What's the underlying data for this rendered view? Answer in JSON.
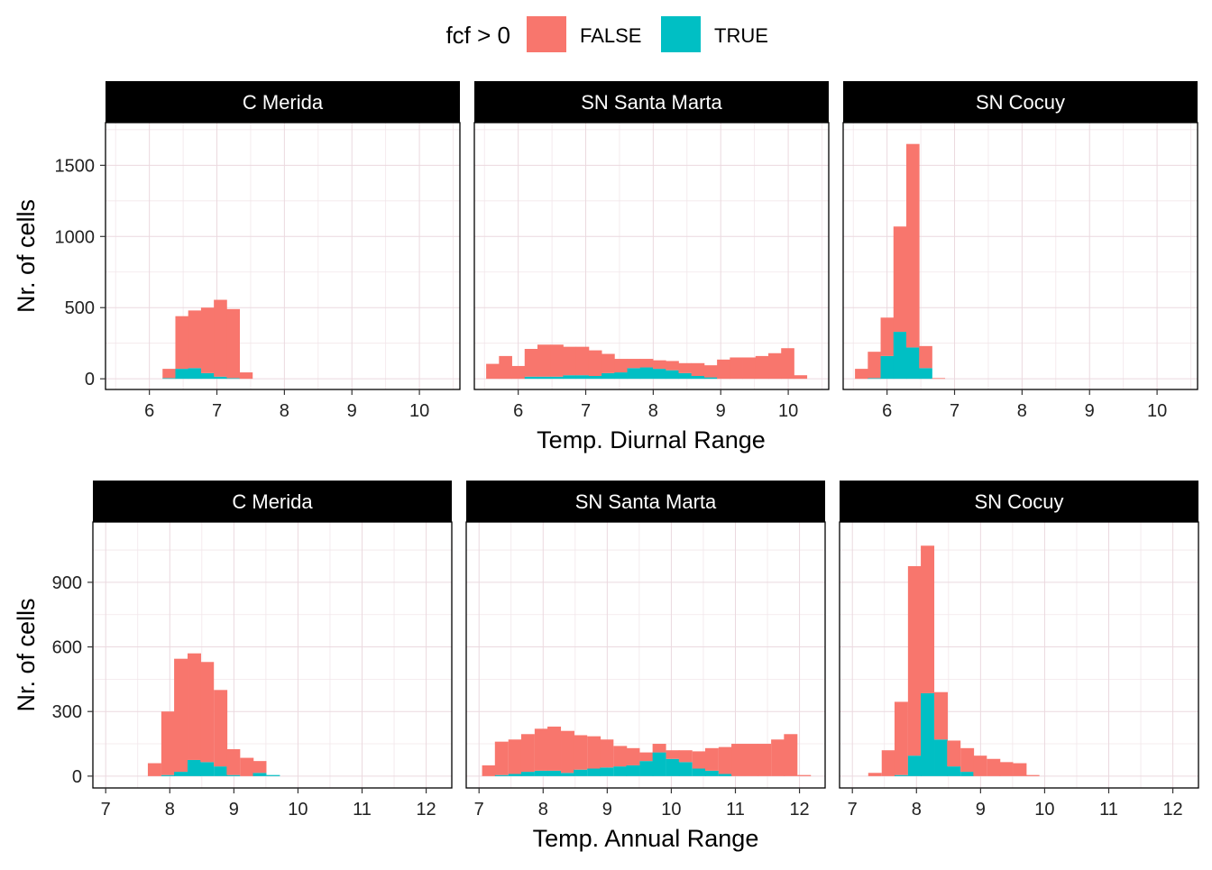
{
  "legend": {
    "title": "fcf > 0",
    "entries": [
      {
        "label": "FALSE",
        "color": "#F8766D"
      },
      {
        "label": "TRUE",
        "color": "#00BFC4"
      }
    ],
    "placement": "top-center"
  },
  "chart_data": [
    {
      "type": "bar",
      "stacked": true,
      "xlabel": "Temp. Diurnal Range",
      "ylabel": "Nr. of cells",
      "xlim": [
        5.35,
        10.6
      ],
      "ylim": [
        -75,
        1800
      ],
      "xticks": [
        6,
        7,
        8,
        9,
        10
      ],
      "yticks": [
        0,
        500,
        1000,
        1500
      ],
      "binwidth": 0.19,
      "facets": [
        {
          "title": "C Merida",
          "bins": [
            {
              "x": 6.29,
              "false": 65,
              "true": 5
            },
            {
              "x": 6.48,
              "false": 370,
              "true": 70
            },
            {
              "x": 6.67,
              "false": 405,
              "true": 75
            },
            {
              "x": 6.86,
              "false": 460,
              "true": 40
            },
            {
              "x": 7.05,
              "false": 540,
              "true": 15
            },
            {
              "x": 7.24,
              "false": 485,
              "true": 5
            },
            {
              "x": 7.43,
              "false": 45,
              "true": 0
            }
          ]
        },
        {
          "title": "SN Santa Marta",
          "bins": [
            {
              "x": 5.62,
              "false": 105,
              "true": 0
            },
            {
              "x": 5.81,
              "false": 160,
              "true": 0
            },
            {
              "x": 6.0,
              "false": 90,
              "true": 0
            },
            {
              "x": 6.19,
              "false": 195,
              "true": 15
            },
            {
              "x": 6.38,
              "false": 225,
              "true": 15
            },
            {
              "x": 6.57,
              "false": 225,
              "true": 15
            },
            {
              "x": 6.76,
              "false": 200,
              "true": 25
            },
            {
              "x": 6.95,
              "false": 200,
              "true": 25
            },
            {
              "x": 7.14,
              "false": 180,
              "true": 20
            },
            {
              "x": 7.33,
              "false": 135,
              "true": 40
            },
            {
              "x": 7.52,
              "false": 95,
              "true": 45
            },
            {
              "x": 7.71,
              "false": 65,
              "true": 75
            },
            {
              "x": 7.9,
              "false": 60,
              "true": 80
            },
            {
              "x": 8.09,
              "false": 60,
              "true": 70
            },
            {
              "x": 8.28,
              "false": 65,
              "true": 60
            },
            {
              "x": 8.47,
              "false": 70,
              "true": 40
            },
            {
              "x": 8.66,
              "false": 90,
              "true": 20
            },
            {
              "x": 8.85,
              "false": 85,
              "true": 10
            },
            {
              "x": 9.04,
              "false": 135,
              "true": 0
            },
            {
              "x": 9.23,
              "false": 150,
              "true": 0
            },
            {
              "x": 9.42,
              "false": 150,
              "true": 0
            },
            {
              "x": 9.61,
              "false": 160,
              "true": 0
            },
            {
              "x": 9.8,
              "false": 180,
              "true": 0
            },
            {
              "x": 9.99,
              "false": 215,
              "true": 0
            },
            {
              "x": 10.18,
              "false": 25,
              "true": 0
            }
          ]
        },
        {
          "title": "SN Cocuy",
          "bins": [
            {
              "x": 5.62,
              "false": 70,
              "true": 0
            },
            {
              "x": 5.81,
              "false": 185,
              "true": 5
            },
            {
              "x": 6.0,
              "false": 270,
              "true": 160
            },
            {
              "x": 6.19,
              "false": 740,
              "true": 330
            },
            {
              "x": 6.38,
              "false": 1430,
              "true": 220
            },
            {
              "x": 6.57,
              "false": 155,
              "true": 75
            },
            {
              "x": 6.76,
              "false": 5,
              "true": 0
            }
          ]
        }
      ]
    },
    {
      "type": "bar",
      "stacked": true,
      "xlabel": "Temp. Annual Range",
      "ylabel": "Nr. of cells",
      "xlim": [
        6.8,
        12.4
      ],
      "ylim": [
        -55,
        1180
      ],
      "xticks": [
        7,
        8,
        9,
        10,
        11,
        12
      ],
      "yticks": [
        0,
        300,
        600,
        900
      ],
      "binwidth": 0.205,
      "facets": [
        {
          "title": "C Merida",
          "bins": [
            {
              "x": 7.76,
              "false": 60,
              "true": 0
            },
            {
              "x": 7.97,
              "false": 295,
              "true": 5
            },
            {
              "x": 8.17,
              "false": 525,
              "true": 20
            },
            {
              "x": 8.38,
              "false": 495,
              "true": 75
            },
            {
              "x": 8.58,
              "false": 465,
              "true": 65
            },
            {
              "x": 8.79,
              "false": 355,
              "true": 45
            },
            {
              "x": 8.99,
              "false": 120,
              "true": 5
            },
            {
              "x": 9.2,
              "false": 85,
              "true": 0
            },
            {
              "x": 9.4,
              "false": 55,
              "true": 15
            },
            {
              "x": 9.61,
              "false": 0,
              "true": 5
            }
          ]
        },
        {
          "title": "SN Santa Marta",
          "bins": [
            {
              "x": 7.15,
              "false": 50,
              "true": 0
            },
            {
              "x": 7.35,
              "false": 155,
              "true": 5
            },
            {
              "x": 7.56,
              "false": 160,
              "true": 10
            },
            {
              "x": 7.76,
              "false": 175,
              "true": 20
            },
            {
              "x": 7.97,
              "false": 195,
              "true": 25
            },
            {
              "x": 8.17,
              "false": 205,
              "true": 25
            },
            {
              "x": 8.38,
              "false": 195,
              "true": 15
            },
            {
              "x": 8.58,
              "false": 160,
              "true": 30
            },
            {
              "x": 8.79,
              "false": 150,
              "true": 35
            },
            {
              "x": 8.99,
              "false": 130,
              "true": 40
            },
            {
              "x": 9.2,
              "false": 95,
              "true": 45
            },
            {
              "x": 9.4,
              "false": 80,
              "true": 50
            },
            {
              "x": 9.61,
              "false": 40,
              "true": 70
            },
            {
              "x": 9.81,
              "false": 40,
              "true": 110
            },
            {
              "x": 10.02,
              "false": 40,
              "true": 80
            },
            {
              "x": 10.22,
              "false": 55,
              "true": 65
            },
            {
              "x": 10.43,
              "false": 80,
              "true": 35
            },
            {
              "x": 10.63,
              "false": 105,
              "true": 25
            },
            {
              "x": 10.84,
              "false": 125,
              "true": 10
            },
            {
              "x": 11.04,
              "false": 150,
              "true": 0
            },
            {
              "x": 11.25,
              "false": 150,
              "true": 0
            },
            {
              "x": 11.45,
              "false": 150,
              "true": 0
            },
            {
              "x": 11.66,
              "false": 170,
              "true": 0
            },
            {
              "x": 11.86,
              "false": 195,
              "true": 0
            },
            {
              "x": 12.07,
              "false": 5,
              "true": 0
            }
          ]
        },
        {
          "title": "SN Cocuy",
          "bins": [
            {
              "x": 7.35,
              "false": 15,
              "true": 0
            },
            {
              "x": 7.56,
              "false": 120,
              "true": 0
            },
            {
              "x": 7.76,
              "false": 340,
              "true": 5
            },
            {
              "x": 7.97,
              "false": 880,
              "true": 95
            },
            {
              "x": 8.17,
              "false": 685,
              "true": 385
            },
            {
              "x": 8.38,
              "false": 220,
              "true": 170
            },
            {
              "x": 8.58,
              "false": 120,
              "true": 45
            },
            {
              "x": 8.79,
              "false": 110,
              "true": 20
            },
            {
              "x": 8.99,
              "false": 95,
              "true": 0
            },
            {
              "x": 9.2,
              "false": 80,
              "true": 0
            },
            {
              "x": 9.4,
              "false": 65,
              "true": 0
            },
            {
              "x": 9.61,
              "false": 60,
              "true": 0
            },
            {
              "x": 9.81,
              "false": 5,
              "true": 0
            }
          ]
        }
      ]
    }
  ]
}
